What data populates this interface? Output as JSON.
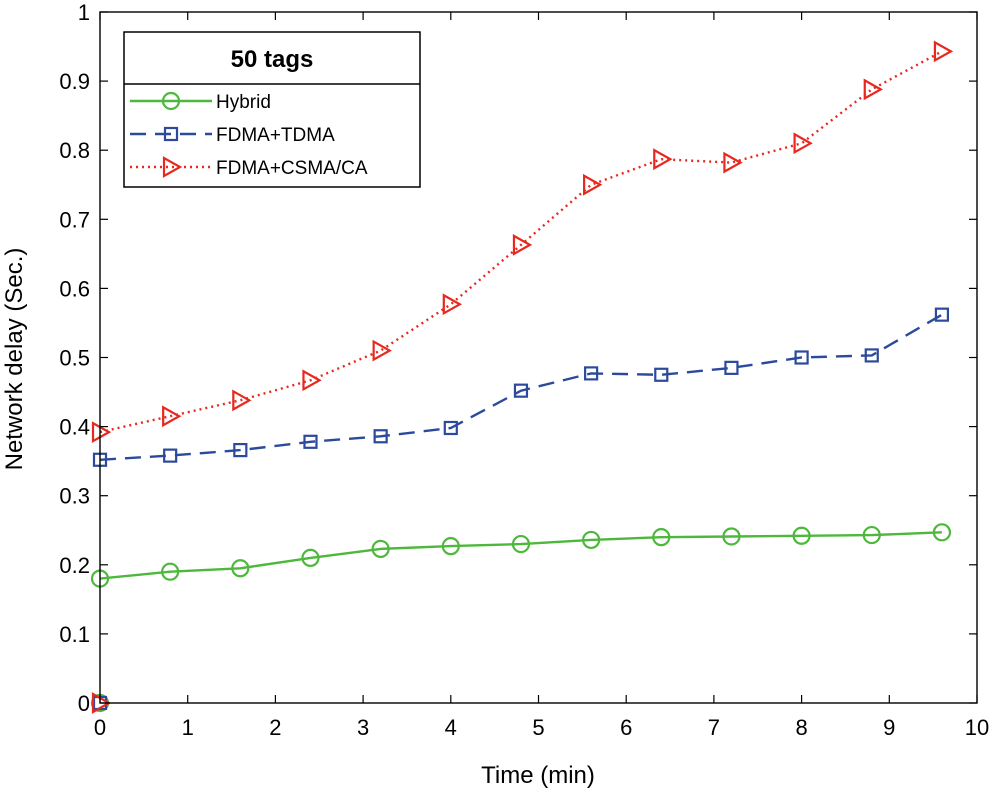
{
  "chart_data": {
    "type": "line",
    "title": "",
    "legend_title": "50 tags",
    "legend_position": "top-left",
    "xlabel": "Time (min)",
    "ylabel": "Network delay (Sec.)",
    "xlim": [
      0,
      10
    ],
    "ylim": [
      0,
      1
    ],
    "xticks": [
      0,
      1,
      2,
      3,
      4,
      5,
      6,
      7,
      8,
      9,
      10
    ],
    "yticks": [
      0,
      0.1,
      0.2,
      0.3,
      0.4,
      0.5,
      0.6,
      0.7,
      0.8,
      0.9,
      1
    ],
    "x": [
      0,
      0.8,
      1.6,
      2.4,
      3.2,
      4.0,
      4.8,
      5.6,
      6.4,
      7.2,
      8.0,
      8.8,
      9.6
    ],
    "series": [
      {
        "name": "Hybrid",
        "color": "#4db83c",
        "marker": "circle",
        "line_style": "solid",
        "start_point": [
          0,
          0
        ],
        "values": [
          0.18,
          0.19,
          0.195,
          0.21,
          0.223,
          0.227,
          0.23,
          0.236,
          0.24,
          0.241,
          0.242,
          0.243,
          0.247
        ]
      },
      {
        "name": "FDMA+TDMA",
        "color": "#2c4a9c",
        "marker": "square",
        "line_style": "dashed",
        "start_point": [
          0,
          0
        ],
        "values": [
          0.352,
          0.358,
          0.366,
          0.378,
          0.386,
          0.398,
          0.452,
          0.477,
          0.475,
          0.485,
          0.5,
          0.503,
          0.562
        ]
      },
      {
        "name": "FDMA+CSMA/CA",
        "color": "#e8281e",
        "marker": "triangle-right",
        "line_style": "dotted",
        "start_point": [
          0,
          0
        ],
        "values": [
          0.392,
          0.415,
          0.438,
          0.467,
          0.51,
          0.577,
          0.663,
          0.75,
          0.787,
          0.782,
          0.81,
          0.888,
          0.943
        ]
      }
    ]
  }
}
